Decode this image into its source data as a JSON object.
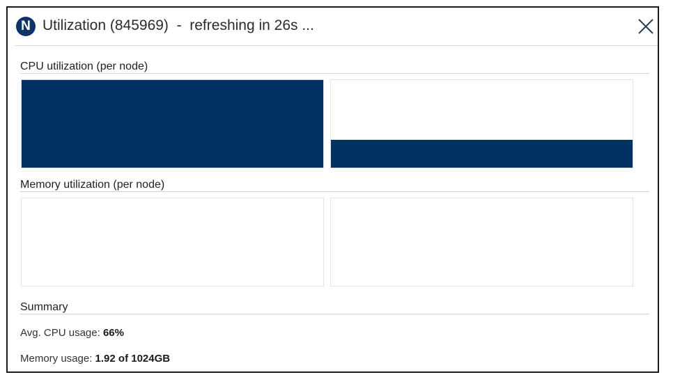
{
  "dialog": {
    "logo_letter": "N",
    "title": "Utilization (845969)  -  refreshing in 26s ...",
    "close_icon": "close-icon"
  },
  "cpu": {
    "section_title": "CPU utilization (per node)",
    "nodes": [
      {
        "utilization": 1.0
      },
      {
        "utilization": 0.32
      }
    ]
  },
  "memory": {
    "section_title": "Memory utilization (per node)",
    "nodes": [
      {
        "utilization": 0.0
      },
      {
        "utilization": 0.0
      }
    ]
  },
  "summary": {
    "section_title": "Summary",
    "avg_cpu_label": "Avg. CPU usage: ",
    "avg_cpu_value": "66%",
    "memory_label": "Memory usage: ",
    "memory_value": "1.92 of 1024GB"
  },
  "colors": {
    "fill": "#003263",
    "logo": "#0d3468"
  }
}
